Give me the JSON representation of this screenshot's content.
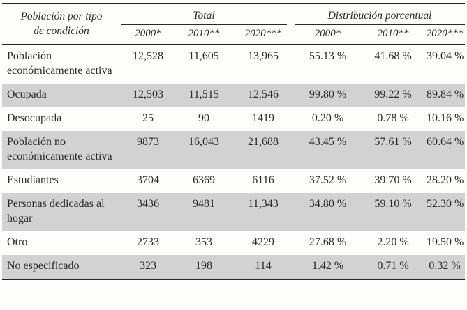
{
  "table": {
    "row_header": {
      "line1": "Población por tipo",
      "line2": "de condición"
    },
    "group_headers": {
      "total": "Total",
      "distribution": "Distribución porcentual"
    },
    "year_headers": [
      "2000*",
      "2010**",
      "2020***",
      "2000*",
      "2010**",
      "2020***"
    ],
    "rows": [
      {
        "label": "Población económicamente activa",
        "shaded": false,
        "values": [
          "12,528",
          "11,605",
          "13,965",
          "55.13 %",
          "41.68 %",
          "39.04 %"
        ]
      },
      {
        "label": "Ocupada",
        "shaded": true,
        "values": [
          "12,503",
          "11,515",
          "12,546",
          "99.80 %",
          "99.22 %",
          "89.84 %"
        ]
      },
      {
        "label": "Desocupada",
        "shaded": false,
        "values": [
          "25",
          "90",
          "1419",
          "0.20 %",
          "0.78 %",
          "10.16 %"
        ]
      },
      {
        "label": "Población no económicamente activa",
        "shaded": true,
        "values": [
          "9873",
          "16,043",
          "21,688",
          "43.45 %",
          "57.61 %",
          "60.64 %"
        ]
      },
      {
        "label": "Estudiantes",
        "shaded": false,
        "values": [
          "3704",
          "6369",
          "6116",
          "37.52 %",
          "39.70 %",
          "28.20 %"
        ]
      },
      {
        "label": "Personas dedicadas al hogar",
        "shaded": true,
        "values": [
          "3436",
          "9481",
          "11,343",
          "34.80 %",
          "59.10 %",
          "52.30 %"
        ]
      },
      {
        "label": "Otro",
        "shaded": false,
        "values": [
          "2733",
          "353",
          "4229",
          "27.68 %",
          "2.20 %",
          "19.50 %"
        ]
      },
      {
        "label": "No especificado",
        "shaded": true,
        "values": [
          "323",
          "198",
          "114",
          "1.42 %",
          "0.71 %",
          "0.32 %"
        ]
      }
    ],
    "colors": {
      "row_shade": "#d2d2d2",
      "text": "#2b2b2b",
      "rule": "#232323"
    }
  }
}
